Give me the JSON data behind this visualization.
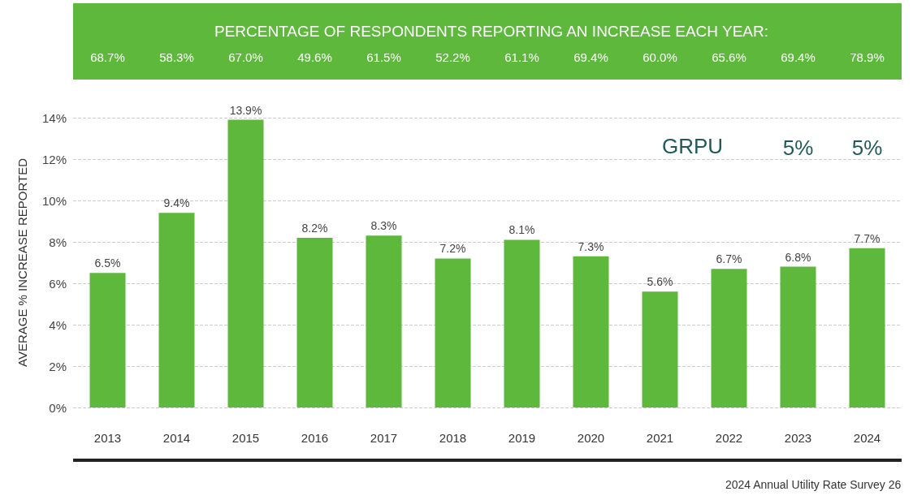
{
  "chart_data": {
    "type": "bar",
    "title": "PERCENTAGE OF RESPONDENTS REPORTING AN INCREASE EACH YEAR:",
    "ylabel": "AVERAGE % INCREASE REPORTED",
    "categories": [
      "2013",
      "2014",
      "2015",
      "2016",
      "2017",
      "2018",
      "2019",
      "2020",
      "2021",
      "2022",
      "2023",
      "2024"
    ],
    "values": [
      6.5,
      9.4,
      13.9,
      8.2,
      8.3,
      7.2,
      8.1,
      7.3,
      5.6,
      6.7,
      6.8,
      7.7
    ],
    "value_labels": [
      "6.5%",
      "9.4%",
      "13.9%",
      "8.2%",
      "8.3%",
      "7.2%",
      "8.1%",
      "7.3%",
      "5.6%",
      "6.7%",
      "6.8%",
      "7.7%"
    ],
    "color": "#5db83c",
    "ylim": [
      0,
      14
    ],
    "yticks": [
      {
        "value": 0,
        "label": "0%"
      },
      {
        "value": 2,
        "label": "2%"
      },
      {
        "value": 4,
        "label": "4%"
      },
      {
        "value": 6,
        "label": "6%"
      },
      {
        "value": 8,
        "label": "8%"
      },
      {
        "value": 10,
        "label": "10%"
      },
      {
        "value": 12,
        "label": "12%"
      },
      {
        "value": 14,
        "label": "14%"
      }
    ],
    "grid": "y",
    "annotations": [
      "68.7%",
      "58.3%",
      "67.0%",
      "49.6%",
      "61.5%",
      "52.2%",
      "61.1%",
      "69.4%",
      "60.0%",
      "65.6%",
      "69.4%",
      "78.9%",
      "GRPU",
      "5%",
      "5%",
      "2024 Annual Utility Rate Survey 26"
    ]
  }
}
